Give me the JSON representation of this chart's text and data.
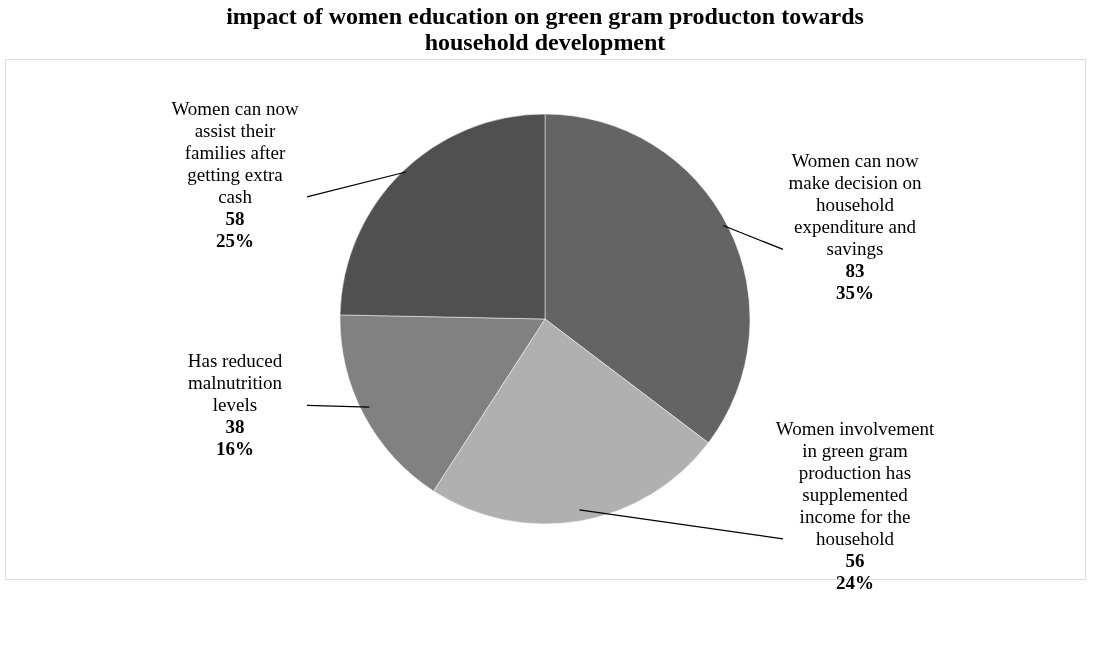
{
  "chart_data": {
    "type": "pie",
    "title": "impact of women education on green gram producton towards household development",
    "categories": [
      "Women can now make decision on household expenditure and savings",
      "Women involvement in green gram production has supplemented income for the household",
      "Has reduced malnutrition levels",
      "Women can now assist their families after getting extra cash"
    ],
    "values": [
      83,
      56,
      38,
      58
    ],
    "colors": [
      "#646464",
      "#b0b0b0",
      "#818181",
      "#505050"
    ],
    "value_labels": [
      "83 35%",
      "56 24%",
      "38 16%",
      "58 25%"
    ]
  }
}
